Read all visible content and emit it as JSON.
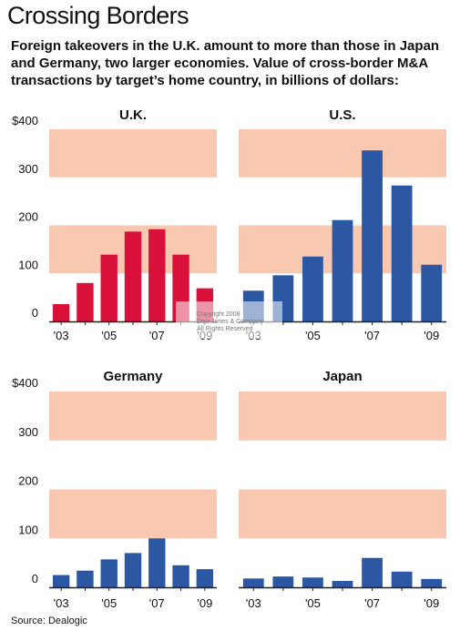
{
  "title": "Crossing Borders",
  "subtitle_lines": [
    "Foreign takeovers in the U.K. amount to more than those in Japan",
    "and Germany, two larger economies. Value of cross-border M&A",
    "transactions by target’s home country, in billions of dollars:"
  ],
  "source": "Source: Dealogic",
  "watermark_lines": [
    "Copyright 2008",
    "Dow Jones & Company",
    "All Rights Reserved"
  ],
  "colors": {
    "uk_bar": "#d8103a",
    "other_bar": "#2c58a3",
    "band": "#f9c8b0",
    "axis": "#222222"
  },
  "chart_data": [
    {
      "type": "bar",
      "title": "U.K.",
      "color": "#d8103a",
      "categories": [
        "'03",
        "'04",
        "'05",
        "'06",
        "'07",
        "'08",
        "'09"
      ],
      "tick_labels": [
        "'03",
        "'05",
        "'07",
        "'09"
      ],
      "y_ticks": [
        "$400",
        "300",
        "200",
        "100",
        "0"
      ],
      "values": [
        36,
        80,
        139,
        187,
        192,
        139,
        69
      ],
      "ylim": [
        0,
        400
      ],
      "grid": "shaded bands 100–200 and 300–400"
    },
    {
      "type": "bar",
      "title": "U.S.",
      "color": "#2c58a3",
      "categories": [
        "'03",
        "'04",
        "'05",
        "'06",
        "'07",
        "'08",
        "'09"
      ],
      "tick_labels": [
        "'03",
        "'05",
        "'07",
        "'09"
      ],
      "y_ticks": [],
      "values": [
        64,
        96,
        135,
        211,
        356,
        283,
        118
      ],
      "ylim": [
        0,
        400
      ],
      "grid": "shaded bands 100–200 and 300–400"
    },
    {
      "type": "bar",
      "title": "Germany",
      "color": "#2c58a3",
      "categories": [
        "'03",
        "'04",
        "'05",
        "'06",
        "'07",
        "'08",
        "'09"
      ],
      "tick_labels": [
        "'03",
        "'05",
        "'07",
        "'09"
      ],
      "y_ticks": [
        "$400",
        "300",
        "200",
        "100",
        "0"
      ],
      "values": [
        25,
        34,
        57,
        70,
        100,
        45,
        37
      ],
      "ylim": [
        0,
        400
      ],
      "grid": "shaded bands 100–200 and 300–400"
    },
    {
      "type": "bar",
      "title": "Japan",
      "color": "#2c58a3",
      "categories": [
        "'03",
        "'04",
        "'05",
        "'06",
        "'07",
        "'08",
        "'09"
      ],
      "tick_labels": [
        "'03",
        "'05",
        "'07",
        "'09"
      ],
      "y_ticks": [],
      "values": [
        18,
        22,
        20,
        13,
        60,
        32,
        17
      ],
      "ylim": [
        0,
        400
      ],
      "grid": "shaded bands 100–200 and 300–400"
    }
  ]
}
